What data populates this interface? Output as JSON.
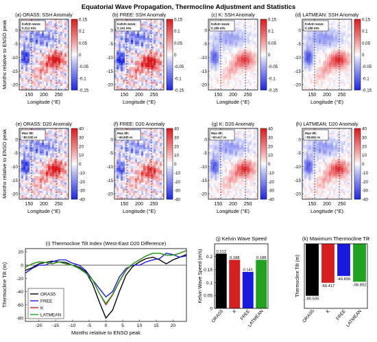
{
  "figure": {
    "title": "Equatorial Wave Propagation, Thermocline Adjustment and Statistics"
  },
  "colors": {
    "negative": "#1f2fe0",
    "positive": "#e0141c",
    "neutral": "#ffffff"
  },
  "maps": {
    "ylabel": "Months relative to ENSO peak",
    "xlabel": "Longitude (°E)",
    "x_ticks": [
      "150",
      "200",
      "250"
    ],
    "y_ticks": [
      "0",
      "-5",
      "-10",
      "-15",
      "-20"
    ],
    "ssh_colorbar_ticks": [
      "0.15",
      "0.1",
      "0.05",
      "0",
      "-0.05",
      "-0.1",
      "-0.15"
    ],
    "d20_colorbar_ticks": [
      "40",
      "30",
      "20",
      "10",
      "0",
      "-10",
      "-20",
      "-30",
      "-40"
    ],
    "ssh_row": [
      {
        "title": "(a) ORAS5: SSH Anomaly",
        "box_title": "Kelvin wave:",
        "box_value": "0.212 m/s",
        "strength": 1.0,
        "noise": 0.9,
        "lag": 0
      },
      {
        "title": "(b) FREE: SSH Anomaly",
        "box_title": "Kelvin wave:",
        "box_value": "0.141 m/s",
        "strength": 1.1,
        "noise": 1.0,
        "lag": 1
      },
      {
        "title": "(c) K: SSH Anomaly",
        "box_title": "Kelvin wave:",
        "box_value": "0.188 m/s",
        "strength": 0.75,
        "noise": 0.25,
        "lag": 0
      },
      {
        "title": "(d) LATMEAN: SSH Anomaly",
        "box_title": "Kelvin wave:",
        "box_value": "0.188 m/s",
        "strength": 0.85,
        "noise": 0.25,
        "lag": 0
      }
    ],
    "d20_row": [
      {
        "title": "(e) ORAS5: D20 Anomaly",
        "box_title": "Max tilt:",
        "box_value": "−80.535 m",
        "strength": 1.0,
        "noise": 0.9,
        "lag": 0
      },
      {
        "title": "(f) FREE: D20 Anomaly",
        "box_title": "Max tilt:",
        "box_value": "−49.835 m",
        "strength": 0.8,
        "noise": 0.9,
        "lag": 1
      },
      {
        "title": "(g) K: D20 Anomaly",
        "box_title": "Max tilt:",
        "box_value": "−60.417 m",
        "strength": 0.8,
        "noise": 0.35,
        "lag": 0
      },
      {
        "title": "(h) LATMEAN: D20 Anomaly",
        "box_title": "Max tilt:",
        "box_value": "−58.802 m",
        "strength": 0.8,
        "noise": 0.35,
        "lag": 0
      }
    ]
  },
  "chart_data": [
    {
      "type": "line",
      "title": "(i) Thermocline Tilt Index (West-East D20 Difference)",
      "xlabel": "Months relative to ENSO peak",
      "ylabel": "Thermocline Tilt (m)",
      "xlim": [
        -24,
        24
      ],
      "ylim": [
        -85,
        25
      ],
      "x_ticks": [
        -20,
        -15,
        -10,
        -5,
        0,
        5,
        10,
        15,
        20
      ],
      "y_ticks": [
        20,
        0,
        -20,
        -40,
        -60,
        -80
      ],
      "legend": "bottom-left",
      "zero_line": true,
      "x": [
        -24,
        -22,
        -20,
        -18,
        -16,
        -14,
        -12,
        -10,
        -8,
        -6,
        -4,
        -2,
        0,
        2,
        4,
        6,
        8,
        10,
        12,
        14,
        16,
        18,
        20,
        22,
        24
      ],
      "series": [
        {
          "name": "ORAS5",
          "color": "#000000",
          "values": [
            -8,
            -4,
            2,
            4,
            6,
            5,
            4,
            0,
            -3,
            -10,
            -28,
            -55,
            -80,
            -68,
            -40,
            -15,
            -2,
            5,
            10,
            12,
            8,
            2,
            8,
            12,
            16
          ]
        },
        {
          "name": "FREE",
          "color": "#1a1adf",
          "values": [
            -12,
            -5,
            0,
            0,
            5,
            8,
            8,
            3,
            0,
            -8,
            -22,
            -35,
            -48,
            -40,
            -18,
            -5,
            0,
            0,
            5,
            8,
            10,
            18,
            16,
            12,
            14
          ]
        },
        {
          "name": "K",
          "color": "#d61f1f",
          "values": [
            -3,
            2,
            5,
            4,
            2,
            5,
            2,
            0,
            -5,
            -12,
            -22,
            -42,
            -60,
            -45,
            -25,
            -8,
            2,
            8,
            14,
            18,
            18,
            15,
            15,
            18,
            22
          ]
        },
        {
          "name": "LATMEAN",
          "color": "#21a321",
          "values": [
            -3,
            2,
            5,
            4,
            2,
            5,
            2,
            0,
            -5,
            -12,
            -22,
            -42,
            -58,
            -44,
            -24,
            -7,
            2,
            8,
            14,
            18,
            18,
            15,
            15,
            18,
            22
          ]
        }
      ]
    },
    {
      "type": "bar",
      "title": "(j) Kelvin Wave Speed",
      "ylabel": "Kelvin Wave Speed (m/s)",
      "ylim": [
        0,
        0.25
      ],
      "y_ticks": [
        0,
        0.05,
        0.1,
        0.15,
        0.2
      ],
      "categories": [
        "ORAS5",
        "K",
        "FREE",
        "LATMEAN"
      ],
      "values": [
        0.212,
        0.188,
        0.141,
        0.188
      ],
      "labels": [
        "0.212",
        "0.188",
        "0.141",
        "0.188"
      ],
      "colors": [
        "#000000",
        "#d61f1f",
        "#1a1adf",
        "#21a321"
      ]
    },
    {
      "type": "bar",
      "title": "(k) Maximum Thermocline Tilt",
      "ylabel": "Thermocline Tilt (m)",
      "ylim": [
        -100,
        0
      ],
      "categories": [
        "ORAS5",
        "K",
        "FREE",
        "LATMEAN"
      ],
      "values": [
        -80.535,
        -60.417,
        -49.835,
        -58.802
      ],
      "labels": [
        "-80.535",
        "-60.417",
        "-49.835",
        "-58.802"
      ],
      "colors": [
        "#000000",
        "#d61f1f",
        "#1a1adf",
        "#21a321"
      ]
    }
  ]
}
